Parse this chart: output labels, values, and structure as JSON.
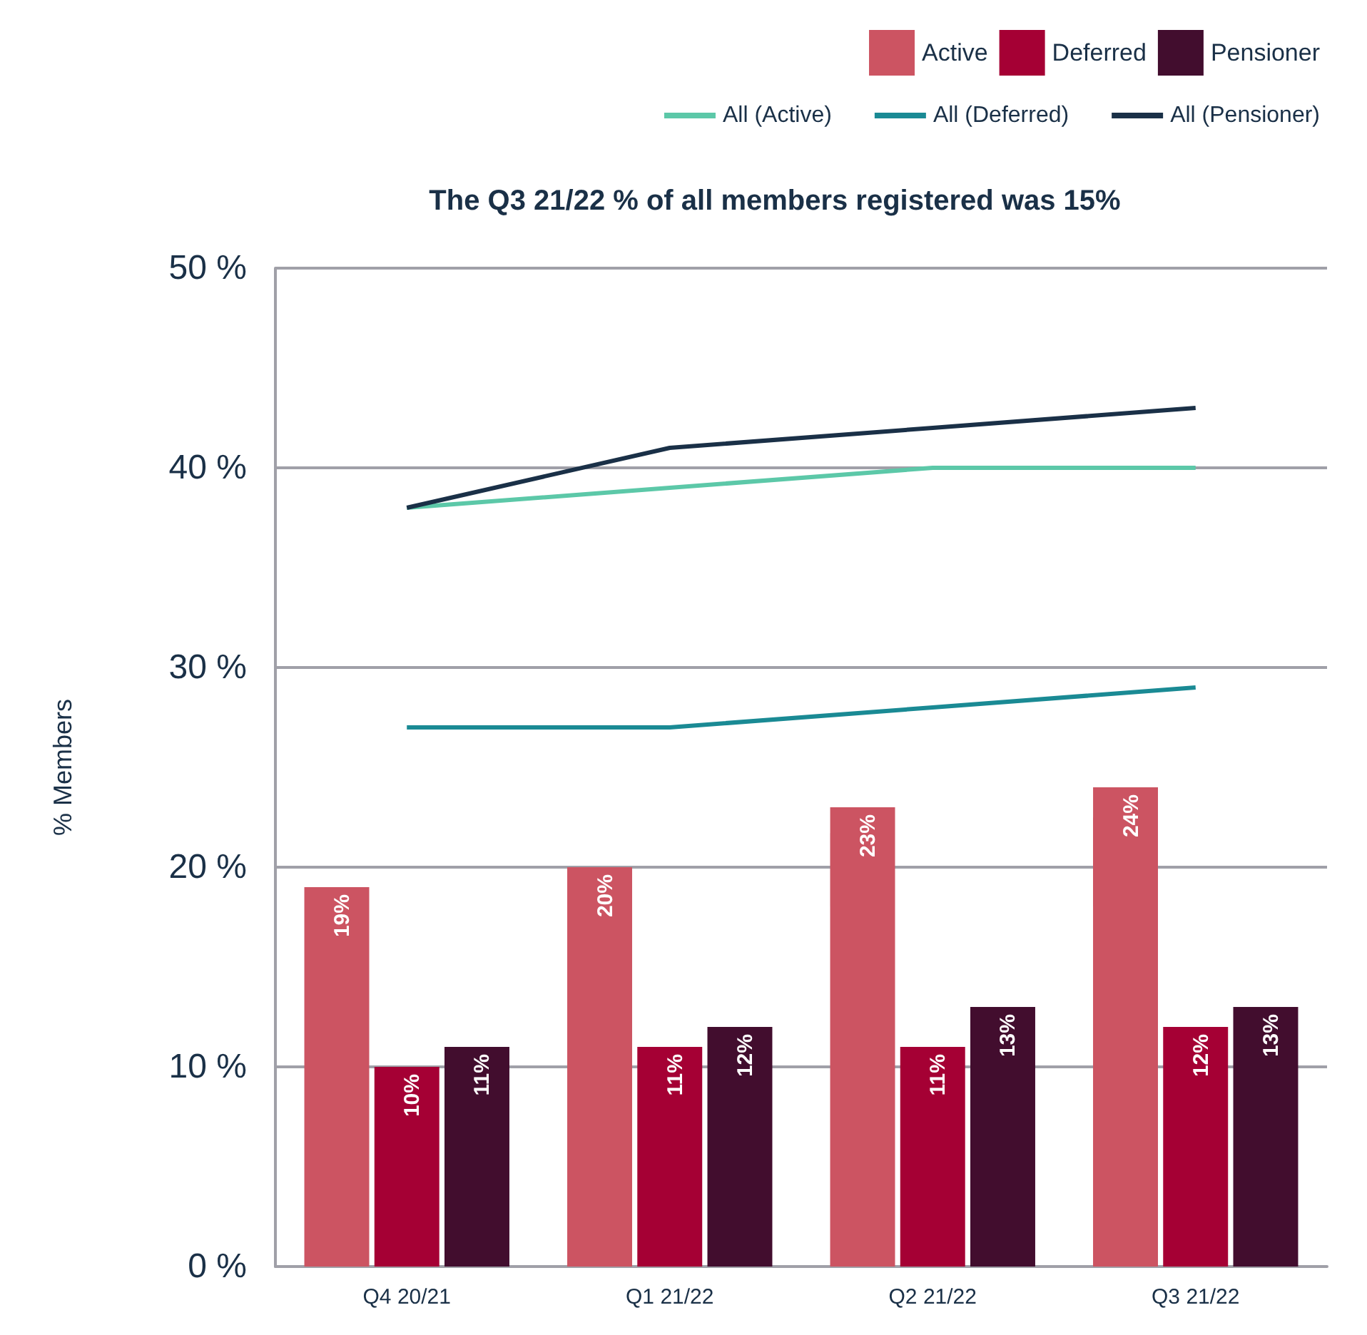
{
  "chart_data": {
    "type": "bar",
    "title": "The Q3 21/22 % of all members registered was 15%",
    "ylabel": "% Members",
    "categories": [
      "Q4 20/21",
      "Q1 21/22",
      "Q2 21/22",
      "Q3 21/22"
    ],
    "series": [
      {
        "name": "Active",
        "color": "#cc5462",
        "values": [
          19,
          20,
          23,
          24
        ],
        "value_labels": [
          "19%",
          "20%",
          "23%",
          "24%"
        ]
      },
      {
        "name": "Deferred",
        "color": "#a50034",
        "values": [
          10,
          11,
          11,
          12
        ],
        "value_labels": [
          "10%",
          "11%",
          "11%",
          "12%"
        ]
      },
      {
        "name": "Pensioner",
        "color": "#420d2e",
        "values": [
          11,
          12,
          13,
          13
        ],
        "value_labels": [
          "11%",
          "12%",
          "13%",
          "13%"
        ]
      },
      {
        "name": "All (Active)",
        "type": "line",
        "color": "#5cc8a8",
        "values": [
          38,
          39,
          40,
          40
        ]
      },
      {
        "name": "All (Deferred)",
        "type": "line",
        "color": "#1a8a94",
        "values": [
          27,
          27,
          28,
          29
        ]
      },
      {
        "name": "All (Pensioner)",
        "type": "line",
        "color": "#1a3047",
        "values": [
          38,
          41,
          42,
          43
        ]
      }
    ],
    "ylim": [
      0,
      50
    ],
    "yticks": [
      {
        "value": 0,
        "label": "0 %"
      },
      {
        "value": 10,
        "label": "10 %"
      },
      {
        "value": 20,
        "label": "20 %"
      },
      {
        "value": 30,
        "label": "30 %"
      },
      {
        "value": 40,
        "label": "40 %"
      },
      {
        "value": 50,
        "label": "50 %"
      }
    ],
    "grid": "y",
    "legend": "top right",
    "marker": "none",
    "line_style": "solid"
  }
}
